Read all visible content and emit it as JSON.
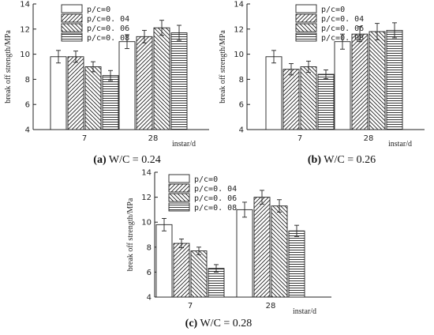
{
  "chart_data": [
    {
      "type": "bar",
      "caption_letter": "(a)",
      "caption_text": " W/C = 0.24",
      "ylabel": "break off strength/MPa",
      "xlabel": "instar/d",
      "categories": [
        "7",
        "28"
      ],
      "ylim": [
        4,
        14
      ],
      "yticks": [
        "4",
        "6",
        "8",
        "10",
        "12",
        "14"
      ],
      "series": [
        {
          "name": "p/c=0",
          "values": [
            9.8,
            11.0
          ],
          "errors": [
            0.5,
            0.55
          ]
        },
        {
          "name": "p/c=0. 04",
          "values": [
            9.8,
            11.4
          ],
          "errors": [
            0.45,
            0.5
          ]
        },
        {
          "name": "p/c=0. 06",
          "values": [
            9.0,
            12.1
          ],
          "errors": [
            0.4,
            0.6
          ]
        },
        {
          "name": "p/c=0. 08",
          "values": [
            8.3,
            11.7
          ],
          "errors": [
            0.4,
            0.6
          ]
        }
      ]
    },
    {
      "type": "bar",
      "caption_letter": "(b)",
      "caption_text": " W/C = 0.26",
      "ylabel": "break off strength/MPa",
      "xlabel": "instar/d",
      "categories": [
        "7",
        "28"
      ],
      "ylim": [
        4,
        14
      ],
      "yticks": [
        "4",
        "6",
        "8",
        "10",
        "12",
        "14"
      ],
      "series": [
        {
          "name": "p/c=0",
          "values": [
            9.8,
            11.0
          ],
          "errors": [
            0.5,
            0.6
          ]
        },
        {
          "name": "p/c=0. 04",
          "values": [
            8.8,
            11.6
          ],
          "errors": [
            0.45,
            0.6
          ]
        },
        {
          "name": "p/c=0. 06",
          "values": [
            9.0,
            11.8
          ],
          "errors": [
            0.45,
            0.65
          ]
        },
        {
          "name": "p/c=0. 08",
          "values": [
            8.4,
            11.9
          ],
          "errors": [
            0.35,
            0.6
          ]
        }
      ]
    },
    {
      "type": "bar",
      "caption_letter": "(c)",
      "caption_text": " W/C = 0.28",
      "ylabel": "break off strength/MPa",
      "xlabel": "instar/d",
      "categories": [
        "7",
        "28"
      ],
      "ylim": [
        4,
        14
      ],
      "yticks": [
        "4",
        "6",
        "8",
        "10",
        "12",
        "14"
      ],
      "series": [
        {
          "name": "p/c=0",
          "values": [
            9.8,
            11.0
          ],
          "errors": [
            0.5,
            0.6
          ]
        },
        {
          "name": "p/c=0. 04",
          "values": [
            8.3,
            12.0
          ],
          "errors": [
            0.35,
            0.55
          ]
        },
        {
          "name": "p/c=0. 06",
          "values": [
            7.7,
            11.3
          ],
          "errors": [
            0.3,
            0.5
          ]
        },
        {
          "name": "p/c=0. 08",
          "values": [
            6.3,
            9.3
          ],
          "errors": [
            0.3,
            0.45
          ]
        }
      ]
    }
  ]
}
